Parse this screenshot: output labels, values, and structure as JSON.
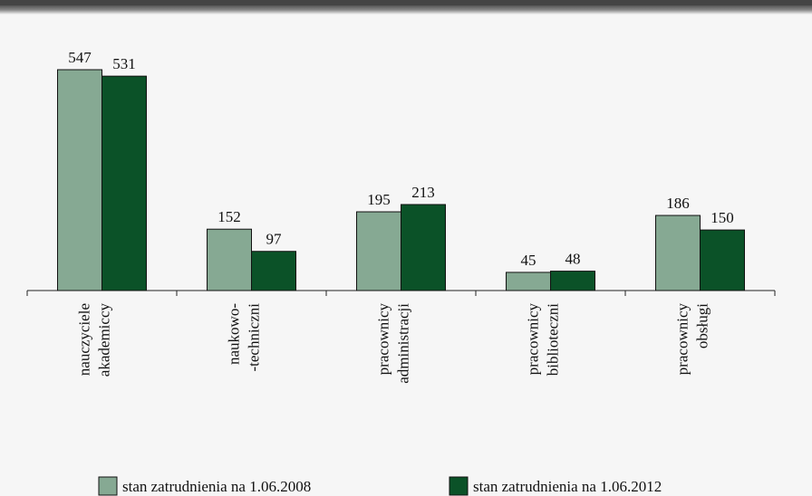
{
  "chart_data": {
    "type": "bar",
    "categories": [
      [
        "nauczyciele",
        "akademiccy"
      ],
      [
        "naukowo-",
        "-techniczni"
      ],
      [
        "pracownicy",
        "administracji"
      ],
      [
        "pracownicy",
        "biblioteczni"
      ],
      [
        "pracownicy",
        "obsługi"
      ]
    ],
    "series": [
      {
        "name": "stan zatrudnienia na 1.06.2008",
        "color": "#86a993",
        "values": [
          547,
          152,
          195,
          45,
          186
        ]
      },
      {
        "name": "stan zatrudnienia na 1.06.2012",
        "color": "#0b5228",
        "values": [
          531,
          97,
          213,
          48,
          150
        ]
      }
    ]
  }
}
